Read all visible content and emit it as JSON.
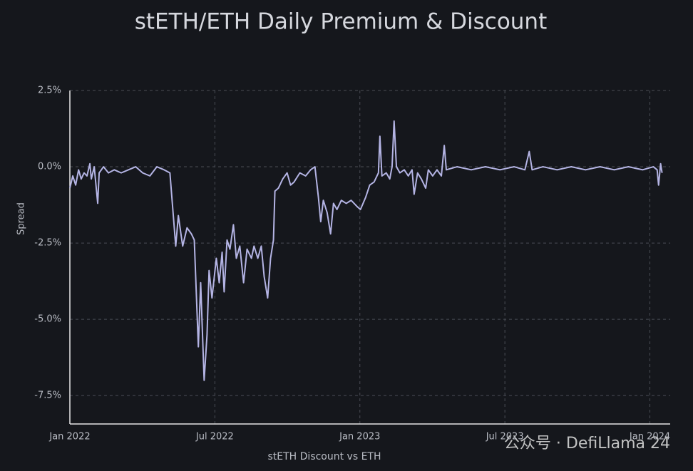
{
  "chart_data": {
    "type": "line",
    "title": "stETH/ETH Daily Premium & Discount",
    "y_label": "Spread",
    "x_label": "stETH Discount vs ETH",
    "watermark": "公众号 · DefiLlama 24",
    "grid": true,
    "xlim": [
      2022,
      2024.07
    ],
    "ylim": [
      -8.43,
      2.5
    ],
    "xticks": [
      {
        "value": 2022,
        "label": "Jan 2022"
      },
      {
        "value": 2022.5,
        "label": "Jul 2022"
      },
      {
        "value": 2023,
        "label": "Jan 2023"
      },
      {
        "value": 2023.5,
        "label": "Jul 2023"
      },
      {
        "value": 2024,
        "label": "Jan 2024"
      }
    ],
    "yticks": [
      {
        "value": 2.5,
        "label": "2.5%"
      },
      {
        "value": 0,
        "label": "0.0%"
      },
      {
        "value": -2.5,
        "label": "-2.5%"
      },
      {
        "value": -5,
        "label": "-5.0%"
      },
      {
        "value": -7.5,
        "label": "-7.5%"
      }
    ],
    "x": [
      2022,
      2022.01,
      2022.02,
      2022.03,
      2022.039,
      2022.049,
      2022.059,
      2022.069,
      2022.074,
      2022.084,
      2022.096,
      2022.101,
      2022.116,
      2022.133,
      2022.153,
      2022.177,
      2022.202,
      2022.227,
      2022.251,
      2022.276,
      2022.3,
      2022.325,
      2022.345,
      2022.365,
      2022.374,
      2022.389,
      2022.404,
      2022.419,
      2022.429,
      2022.443,
      2022.451,
      2022.463,
      2022.473,
      2022.48,
      2022.49,
      2022.505,
      2022.515,
      2022.525,
      2022.532,
      2022.542,
      2022.552,
      2022.564,
      2022.574,
      2022.586,
      2022.599,
      2022.611,
      2022.626,
      2022.635,
      2022.648,
      2022.66,
      2022.67,
      2022.682,
      2022.692,
      2022.702,
      2022.707,
      2022.719,
      2022.734,
      2022.749,
      2022.761,
      2022.773,
      2022.793,
      2022.813,
      2022.83,
      2022.845,
      2022.857,
      2022.865,
      2022.874,
      2022.887,
      2022.899,
      2022.909,
      2022.921,
      2022.936,
      2022.953,
      2022.97,
      2022.99,
      2023.002,
      2023.02,
      2023.034,
      2023.049,
      2023.064,
      2023.069,
      2023.076,
      2023.091,
      2023.103,
      2023.111,
      2023.118,
      2023.126,
      2023.138,
      2023.153,
      2023.167,
      2023.18,
      2023.187,
      2023.199,
      2023.212,
      2023.227,
      2023.236,
      2023.251,
      2023.266,
      2023.281,
      2023.291,
      2023.298,
      2023.335,
      2023.384,
      2023.433,
      2023.483,
      2023.532,
      2023.569,
      2023.584,
      2023.594,
      2023.631,
      2023.68,
      2023.729,
      2023.778,
      2023.828,
      2023.877,
      2023.926,
      2023.975,
      2024.012,
      2024.025,
      2024.03,
      2024.037,
      2024.042
    ],
    "series": [
      {
        "name": "stETH Discount vs ETH",
        "color": "#b4b4e4",
        "values": [
          -0.7,
          -0.3,
          -0.6,
          -0.1,
          -0.4,
          -0.2,
          -0.3,
          0.1,
          -0.4,
          0.0,
          -1.2,
          -0.2,
          0.0,
          -0.2,
          -0.1,
          -0.2,
          -0.1,
          0.0,
          -0.2,
          -0.3,
          0.0,
          -0.1,
          -0.2,
          -2.6,
          -1.6,
          -2.6,
          -2.0,
          -2.2,
          -2.4,
          -5.9,
          -3.8,
          -7.0,
          -5.5,
          -3.4,
          -4.3,
          -3.0,
          -3.8,
          -2.8,
          -4.1,
          -2.4,
          -2.7,
          -1.9,
          -3.0,
          -2.6,
          -3.8,
          -2.7,
          -3.0,
          -2.6,
          -3.0,
          -2.6,
          -3.6,
          -4.3,
          -3.0,
          -2.4,
          -0.8,
          -0.7,
          -0.4,
          -0.2,
          -0.6,
          -0.5,
          -0.2,
          -0.3,
          -0.1,
          0.0,
          -1.0,
          -1.8,
          -1.1,
          -1.5,
          -2.2,
          -1.2,
          -1.4,
          -1.1,
          -1.2,
          -1.1,
          -1.3,
          -1.4,
          -1.0,
          -0.6,
          -0.5,
          -0.2,
          1.0,
          -0.3,
          -0.2,
          -0.4,
          0.0,
          1.5,
          0.0,
          -0.2,
          -0.1,
          -0.3,
          -0.1,
          -0.9,
          -0.2,
          -0.4,
          -0.7,
          -0.1,
          -0.3,
          -0.1,
          -0.3,
          0.7,
          -0.1,
          0.0,
          -0.1,
          0.0,
          -0.1,
          0.0,
          -0.1,
          0.5,
          -0.1,
          0.0,
          -0.1,
          0.0,
          -0.1,
          0.0,
          -0.1,
          0.0,
          -0.1,
          0.0,
          -0.1,
          -0.6,
          0.1,
          -0.2
        ]
      }
    ]
  }
}
